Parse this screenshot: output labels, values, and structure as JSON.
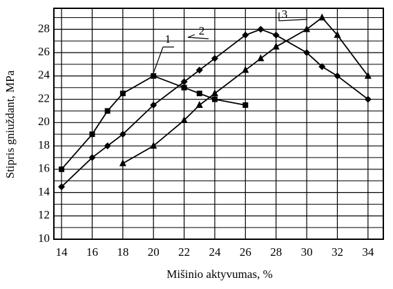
{
  "chart_data": {
    "type": "line",
    "xlabel": "Mišinio aktyvumas, %",
    "ylabel": "Stipris gniuždant, MPa",
    "xlim": [
      13.5,
      35
    ],
    "ylim": [
      10,
      29.8
    ],
    "xticks": [
      14,
      16,
      18,
      20,
      22,
      24,
      26,
      28,
      30,
      32,
      34
    ],
    "yticks": [
      10,
      12,
      14,
      16,
      18,
      20,
      22,
      24,
      26,
      28
    ],
    "y_minor_grid": [
      11,
      13,
      15,
      17,
      19,
      21,
      23,
      25,
      27,
      29
    ],
    "grid": true,
    "annotations": [
      "1",
      "2",
      "3"
    ],
    "series": [
      {
        "marker": "square",
        "color": "#000000",
        "x": [
          14,
          16,
          17,
          18,
          20,
          22,
          23,
          24,
          26
        ],
        "values": [
          16,
          19,
          21,
          22.5,
          24,
          23,
          22.5,
          22,
          21.5
        ]
      },
      {
        "marker": "diamond",
        "color": "#000000",
        "x": [
          14,
          16,
          17,
          18,
          20,
          22,
          23,
          24,
          26,
          27,
          28,
          30,
          31,
          32,
          34
        ],
        "values": [
          14.5,
          17,
          18,
          19,
          21.5,
          23.5,
          24.5,
          25.5,
          27.5,
          28,
          27.5,
          26,
          24.8,
          24,
          22
        ]
      },
      {
        "marker": "triangle",
        "color": "#000000",
        "x": [
          18,
          20,
          22,
          23,
          24,
          26,
          27,
          28,
          30,
          31,
          32,
          34
        ],
        "values": [
          16.5,
          18,
          20.2,
          21.5,
          22.5,
          24.5,
          25.5,
          26.5,
          28,
          29,
          27.5,
          24
        ]
      }
    ]
  }
}
